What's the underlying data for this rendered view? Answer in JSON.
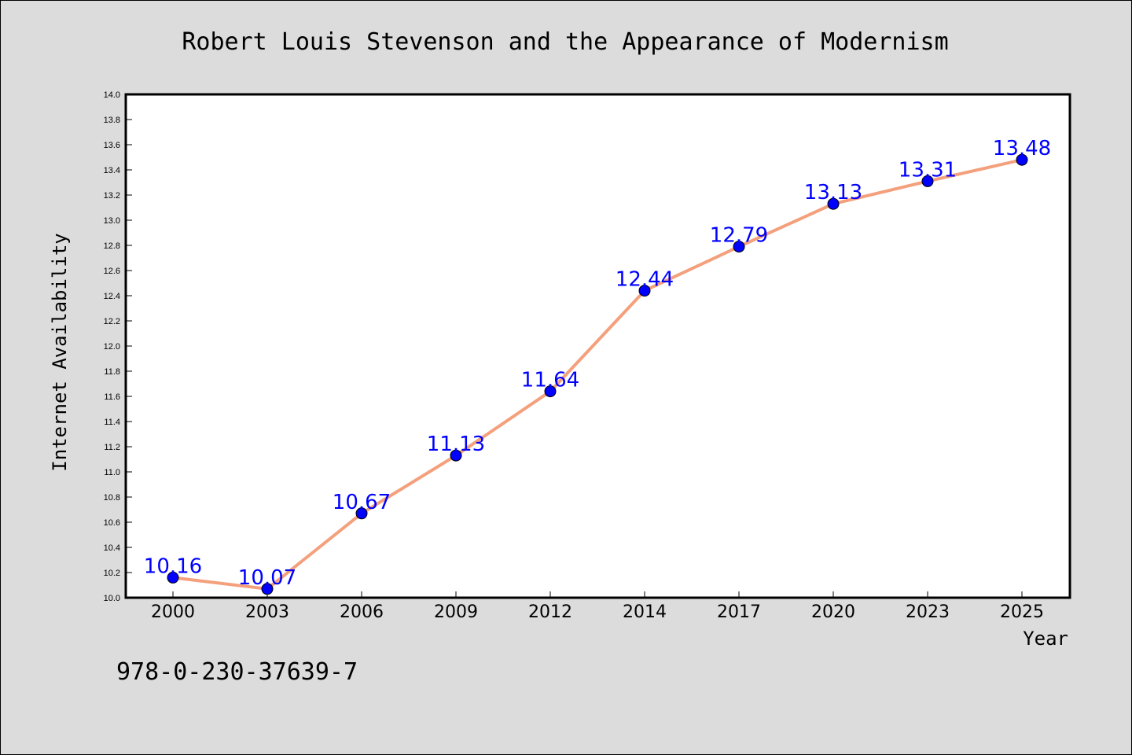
{
  "chart_data": {
    "type": "line",
    "title": "Robert Louis Stevenson and the Appearance of Modernism",
    "xlabel": "Year",
    "ylabel": "Internet Availability",
    "categories": [
      "2000",
      "2003",
      "2006",
      "2009",
      "2012",
      "2014",
      "2017",
      "2020",
      "2023",
      "2025"
    ],
    "series": [
      {
        "values": [
          10.16,
          10.07,
          10.67,
          11.13,
          11.64,
          12.44,
          12.79,
          13.13,
          13.31,
          13.48
        ],
        "line_color": "#f4a07c",
        "marker_color": "#0000ff",
        "label_color": "#0000ff"
      }
    ],
    "ylim": [
      10.0,
      14.0
    ],
    "yticks": [
      "10.0",
      "10.2",
      "10.4",
      "10.6",
      "10.8",
      "11.0",
      "11.2",
      "11.4",
      "11.6",
      "11.8",
      "12.0",
      "12.2",
      "12.4",
      "12.6",
      "12.8",
      "13.0",
      "13.2",
      "13.4",
      "13.6",
      "13.8",
      "14.0"
    ],
    "grid": false,
    "legend": "none"
  },
  "footnote": "978-0-230-37639-7"
}
